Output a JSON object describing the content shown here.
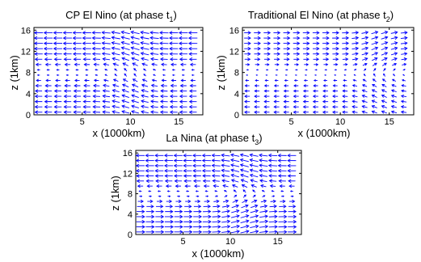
{
  "panels": [
    {
      "title_main": "CP El Nino (at phase t",
      "title_sub": "1",
      "title_close": ")",
      "xlabel": "x (1000km)",
      "ylabel": "z (1km)",
      "xticks": [
        5,
        10,
        15
      ],
      "yticks": [
        0,
        4,
        8,
        12,
        16
      ],
      "xlim": [
        0,
        17.5
      ],
      "ylim": [
        0,
        16.5
      ]
    },
    {
      "title_main": "Traditional El Nino (at phase t",
      "title_sub": "2",
      "title_close": ")",
      "xlabel": "x (1000km)",
      "ylabel": "z (1km)",
      "xticks": [
        5,
        10,
        15
      ],
      "yticks": [
        0,
        4,
        8,
        12,
        16
      ],
      "xlim": [
        0,
        17.5
      ],
      "ylim": [
        0,
        16.5
      ]
    },
    {
      "title_main": "La Nina (at phase t",
      "title_sub": "3",
      "title_close": ")",
      "xlabel": "x (1000km)",
      "ylabel": "z (1km)",
      "xticks": [
        5,
        10,
        15
      ],
      "yticks": [
        0,
        4,
        8,
        12,
        16
      ],
      "xlim": [
        0,
        17.5
      ],
      "ylim": [
        0,
        16.5
      ]
    }
  ],
  "chart_data": [
    {
      "type": "quiver",
      "title": "CP El Nino (at phase t1)",
      "xlabel": "x (1000km)",
      "ylabel": "z (1km)",
      "xlim": [
        0,
        17.5
      ],
      "ylim": [
        0,
        16.5
      ],
      "xticks": [
        5,
        10,
        15
      ],
      "yticks": [
        0,
        4,
        8,
        12,
        16
      ],
      "grid": false,
      "arrow_color": "#0000ff",
      "x": [
        0.5,
        1.5,
        2.5,
        3.5,
        4.5,
        5.5,
        6.5,
        7.5,
        8.5,
        9.5,
        10.5,
        11.5,
        12.5,
        13.5,
        14.5,
        15.5,
        16.5
      ],
      "z": [
        0.5,
        1.5,
        2.5,
        3.5,
        4.5,
        5.5,
        6.5,
        7.5,
        8.5,
        9.5,
        10.5,
        11.5,
        12.5,
        13.5,
        14.5,
        15.5
      ],
      "flow": {
        "upper_u": -1.0,
        "lower_u": -0.85,
        "center_x": 10.0,
        "turn_depth": 8.0
      }
    },
    {
      "type": "quiver",
      "title": "Traditional El Nino (at phase t2)",
      "xlabel": "x (1000km)",
      "ylabel": "z (1km)",
      "xlim": [
        0,
        17.5
      ],
      "ylim": [
        0,
        16.5
      ],
      "xticks": [
        5,
        10,
        15
      ],
      "yticks": [
        0,
        4,
        8,
        12,
        16
      ],
      "grid": false,
      "arrow_color": "#0000ff",
      "x": [
        0.5,
        1.5,
        2.5,
        3.5,
        4.5,
        5.5,
        6.5,
        7.5,
        8.5,
        9.5,
        10.5,
        11.5,
        12.5,
        13.5,
        14.5,
        15.5,
        16.5
      ],
      "z": [
        0.5,
        1.5,
        2.5,
        3.5,
        4.5,
        5.5,
        6.5,
        7.5,
        8.5,
        9.5,
        10.5,
        11.5,
        12.5,
        13.5,
        14.5,
        15.5
      ],
      "flow": {
        "upper_u": 0.75,
        "lower_u": -0.6,
        "center_x": 14.0,
        "turn_depth": 8.0
      }
    },
    {
      "type": "quiver",
      "title": "La Nina (at phase t3)",
      "xlabel": "x (1000km)",
      "ylabel": "z (1km)",
      "xlim": [
        0,
        17.5
      ],
      "ylim": [
        0,
        16.5
      ],
      "xticks": [
        5,
        10,
        15
      ],
      "yticks": [
        0,
        4,
        8,
        12,
        16
      ],
      "grid": false,
      "arrow_color": "#0000ff",
      "x": [
        0.5,
        1.5,
        2.5,
        3.5,
        4.5,
        5.5,
        6.5,
        7.5,
        8.5,
        9.5,
        10.5,
        11.5,
        12.5,
        13.5,
        14.5,
        15.5,
        16.5
      ],
      "z": [
        0.5,
        1.5,
        2.5,
        3.5,
        4.5,
        5.5,
        6.5,
        7.5,
        8.5,
        9.5,
        10.5,
        11.5,
        12.5,
        13.5,
        14.5,
        15.5
      ],
      "flow": {
        "upper_u": -1.0,
        "lower_u": 1.0,
        "center_x": 11.5,
        "turn_depth": 8.0
      }
    }
  ]
}
